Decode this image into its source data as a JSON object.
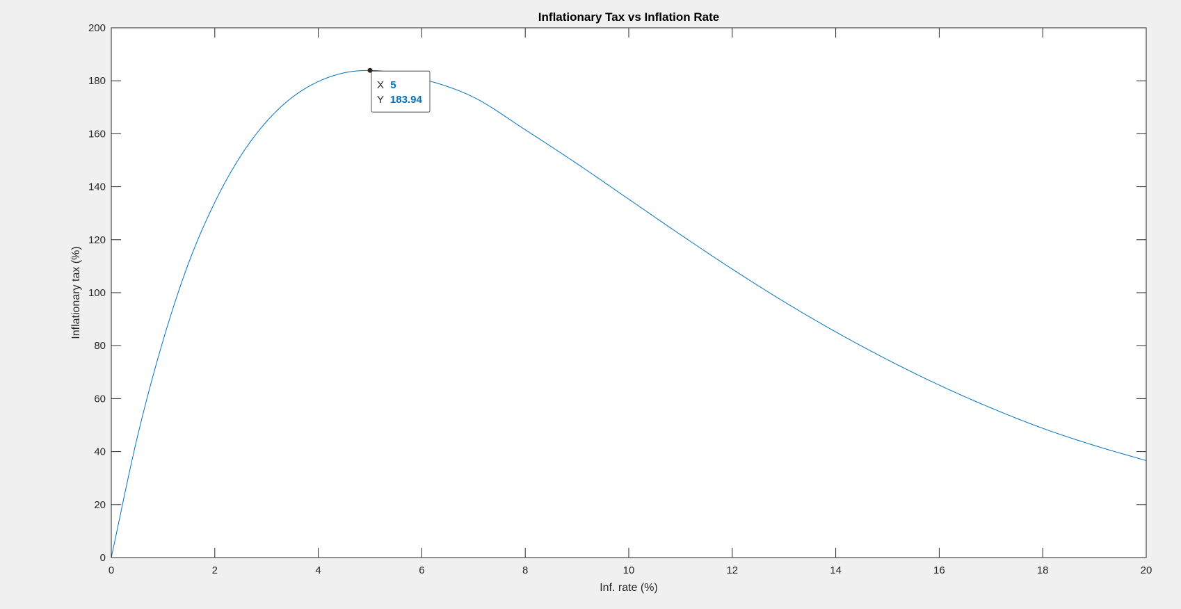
{
  "colors": {
    "figure_bg": "#f0f0f0",
    "axes_bg": "#ffffff",
    "axis_color": "#262626",
    "line_color": "#0072bd",
    "datatip_value_color": "#0072bd"
  },
  "chart_data": {
    "type": "line",
    "title": "Inflationary Tax vs Inflation Rate",
    "xlabel": "Inf. rate (%)",
    "ylabel": "Inflationary tax (%)",
    "xlim": [
      0,
      20
    ],
    "ylim": [
      0,
      200
    ],
    "xticks": [
      0,
      2,
      4,
      6,
      8,
      10,
      12,
      14,
      16,
      18,
      20
    ],
    "yticks": [
      0,
      20,
      40,
      60,
      80,
      100,
      120,
      140,
      160,
      180,
      200
    ],
    "grid": false,
    "box": true,
    "x": [
      0,
      0.5,
      1,
      1.5,
      2,
      2.5,
      3,
      3.5,
      4,
      4.5,
      5,
      6,
      7,
      8,
      9,
      10,
      11,
      12,
      13,
      14,
      15,
      16,
      17,
      18,
      19,
      20
    ],
    "series": [
      {
        "values": [
          0,
          45.2,
          81.9,
          111.5,
          134.1,
          151.6,
          164.6,
          173.8,
          179.7,
          183.0,
          183.9,
          180.7,
          173.8,
          161.5,
          148.7,
          135.3,
          121.9,
          108.9,
          96.6,
          85.2,
          74.7,
          65.1,
          56.5,
          48.8,
          42.3,
          36.6
        ]
      }
    ],
    "datatip": {
      "x": 5,
      "y": 183.94,
      "x_label": "X",
      "y_label": "Y",
      "x_text": "5",
      "y_text": "183.94"
    }
  }
}
